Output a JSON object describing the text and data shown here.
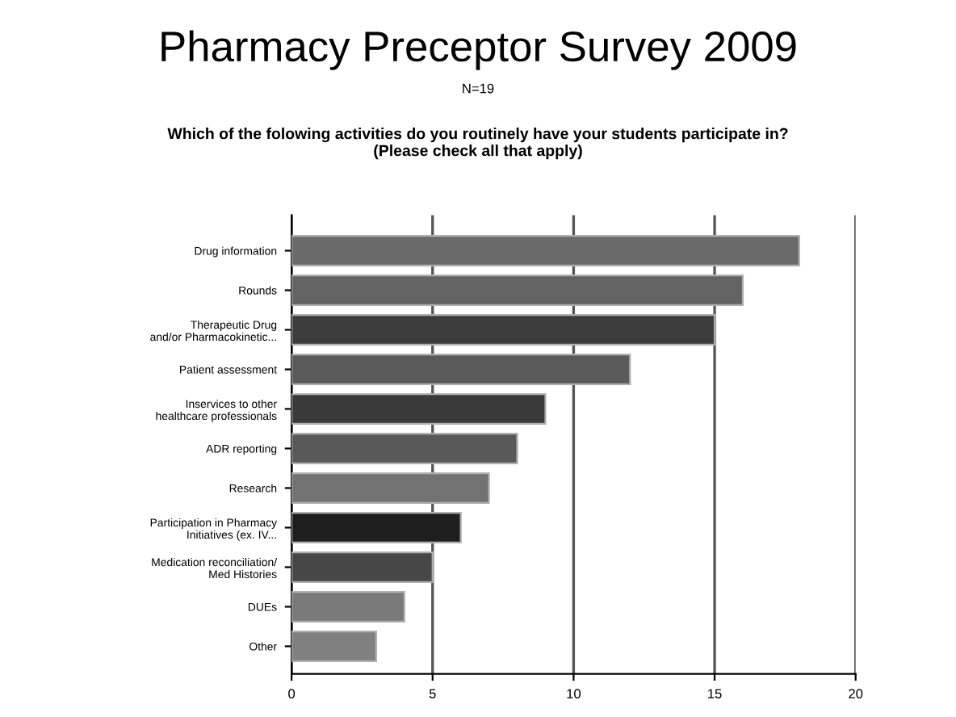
{
  "chart_data": {
    "type": "bar",
    "orientation": "horizontal",
    "title": "Pharmacy Preceptor Survey 2009",
    "subtitle": "N=19",
    "annotations": [
      "Which of the folowing activities do you routinely have your students participate in?\n(Please check all that apply)"
    ],
    "categories": [
      "Drug information",
      "Rounds",
      "Therapeutic Drug\nand/or Pharmacokinetic...",
      "Patient assessment",
      "Inservices to other\nhealthcare professionals",
      "ADR reporting",
      "Research",
      "Participation in Pharmacy\nInitiatives (ex. IV...",
      "Medication reconciliation/\nMed Histories",
      "DUEs",
      "Other"
    ],
    "values": [
      18,
      16,
      15,
      12,
      9,
      8,
      7,
      6,
      5,
      4,
      3
    ],
    "colors": [
      "#6a6a6a",
      "#636363",
      "#3c3c3c",
      "#5a5a5a",
      "#3a3a3a",
      "#595959",
      "#727272",
      "#1e1e1e",
      "#474747",
      "#7a7a7a",
      "#808080"
    ],
    "xlim": [
      0,
      20
    ],
    "xticks": [
      0,
      5,
      10,
      15,
      20
    ],
    "grid": "x"
  }
}
